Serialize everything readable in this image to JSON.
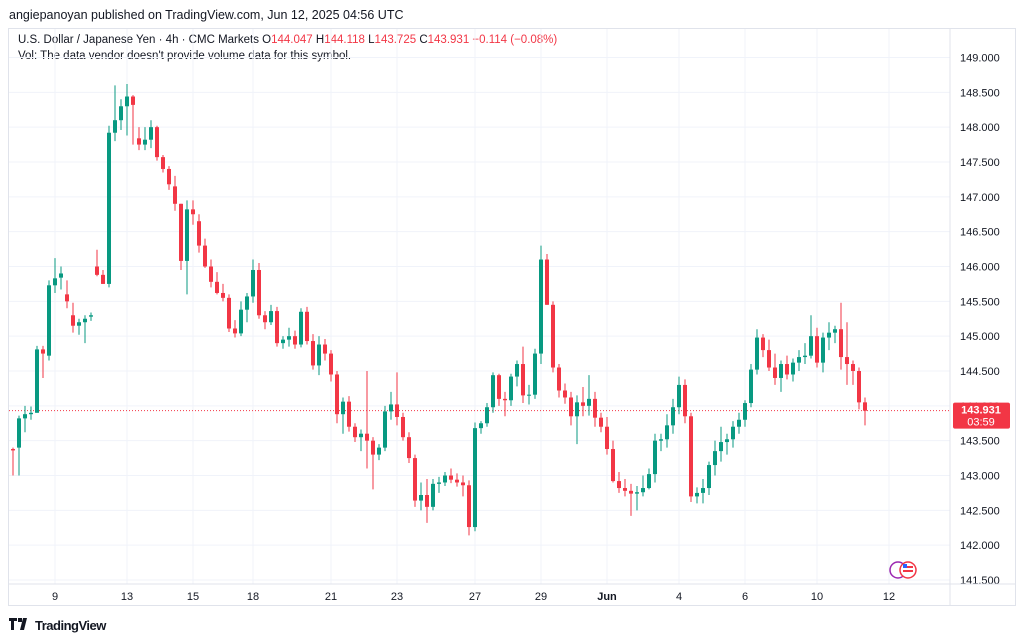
{
  "header": {
    "publisher": "angiepanoyan published on TradingView.com, Jun 12, 2025 04:56 UTC"
  },
  "legend": {
    "symbol": "U.S. Dollar / Japanese Yen · 4h · CMC Markets",
    "open_label": "O",
    "open_value": "144.047",
    "high_label": "H",
    "high_value": "144.118",
    "low_label": "L",
    "low_value": "143.725",
    "close_label": "C",
    "close_value": "143.931",
    "change": "−0.114 (−0.08%)",
    "volume_note": "Vol: The data vendor doesn't provide volume data for this symbol."
  },
  "price_tag": {
    "price": "143.931",
    "countdown": "03:59"
  },
  "footer": {
    "brand": "TradingView"
  },
  "colors": {
    "up": "#089981",
    "down": "#f23645",
    "grid": "#f0f3fa",
    "text": "#131722"
  },
  "chart_data": {
    "type": "candlestick",
    "title": "U.S. Dollar / Japanese Yen · 4h · CMC Markets",
    "ylim": [
      141.5,
      149.0
    ],
    "y_ticks": [
      "149.000",
      "148.500",
      "148.000",
      "147.500",
      "147.000",
      "146.500",
      "146.000",
      "145.500",
      "145.000",
      "144.500",
      "144.000",
      "143.500",
      "143.000",
      "142.500",
      "142.000",
      "141.500"
    ],
    "x_ticks": [
      {
        "label": "9",
        "index": 7
      },
      {
        "label": "13",
        "index": 19
      },
      {
        "label": "15",
        "index": 30
      },
      {
        "label": "18",
        "index": 40
      },
      {
        "label": "21",
        "index": 53
      },
      {
        "label": "23",
        "index": 64
      },
      {
        "label": "27",
        "index": 77
      },
      {
        "label": "29",
        "index": 88
      },
      {
        "label": "Jun",
        "index": 99
      },
      {
        "label": "4",
        "index": 111
      },
      {
        "label": "6",
        "index": 122
      },
      {
        "label": "10",
        "index": 134
      },
      {
        "label": "12",
        "index": 146
      }
    ],
    "last_price": 143.931,
    "candles": [
      [
        143.38,
        143.4,
        143.0,
        143.36
      ],
      [
        143.4,
        143.86,
        143.0,
        143.82
      ],
      [
        143.82,
        144.0,
        143.62,
        143.88
      ],
      [
        143.88,
        143.99,
        143.8,
        143.9
      ],
      [
        143.9,
        144.86,
        143.9,
        144.81
      ],
      [
        144.81,
        144.86,
        144.4,
        144.75
      ],
      [
        144.72,
        145.8,
        144.65,
        145.73
      ],
      [
        145.73,
        146.12,
        145.62,
        145.83
      ],
      [
        145.84,
        146.0,
        145.67,
        145.9
      ],
      [
        145.6,
        145.8,
        145.4,
        145.5
      ],
      [
        145.3,
        145.48,
        145.05,
        145.15
      ],
      [
        145.15,
        145.25,
        145.02,
        145.2
      ],
      [
        145.2,
        145.3,
        144.9,
        145.25
      ],
      [
        145.28,
        145.34,
        145.22,
        145.3
      ],
      [
        146.0,
        146.24,
        145.86,
        145.88
      ],
      [
        145.88,
        145.95,
        145.75,
        145.75
      ],
      [
        145.75,
        148.02,
        145.7,
        147.92
      ],
      [
        147.92,
        148.6,
        147.8,
        148.1
      ],
      [
        148.1,
        148.4,
        147.96,
        148.3
      ],
      [
        148.3,
        148.62,
        147.88,
        148.44
      ],
      [
        148.44,
        148.46,
        147.75,
        148.32
      ],
      [
        147.84,
        148.0,
        147.67,
        147.75
      ],
      [
        147.75,
        148.0,
        147.67,
        147.82
      ],
      [
        147.82,
        148.1,
        147.7,
        148.0
      ],
      [
        148.0,
        148.02,
        147.52,
        147.57
      ],
      [
        147.57,
        147.6,
        147.35,
        147.4
      ],
      [
        147.4,
        147.44,
        147.1,
        147.18
      ],
      [
        147.15,
        147.3,
        146.8,
        146.9
      ],
      [
        146.9,
        146.9,
        145.95,
        146.08
      ],
      [
        146.08,
        146.95,
        145.6,
        146.82
      ],
      [
        146.82,
        146.95,
        146.6,
        146.75
      ],
      [
        146.65,
        146.75,
        146.2,
        146.3
      ],
      [
        146.3,
        146.4,
        145.98,
        146.0
      ],
      [
        146.0,
        146.1,
        145.7,
        145.78
      ],
      [
        145.78,
        145.92,
        145.6,
        145.62
      ],
      [
        145.62,
        145.75,
        145.5,
        145.55
      ],
      [
        145.55,
        145.6,
        145.06,
        145.11
      ],
      [
        145.11,
        145.23,
        144.98,
        145.04
      ],
      [
        145.04,
        145.5,
        145.0,
        145.38
      ],
      [
        145.38,
        145.62,
        145.2,
        145.57
      ],
      [
        145.57,
        146.1,
        145.48,
        145.95
      ],
      [
        145.95,
        146.05,
        145.25,
        145.3
      ],
      [
        145.3,
        145.36,
        145.1,
        145.2
      ],
      [
        145.2,
        145.45,
        145.16,
        145.36
      ],
      [
        145.36,
        145.42,
        144.85,
        144.9
      ],
      [
        144.9,
        145.0,
        144.82,
        144.95
      ],
      [
        144.95,
        145.12,
        144.85,
        145.0
      ],
      [
        145.0,
        145.08,
        144.82,
        144.88
      ],
      [
        144.88,
        145.4,
        144.84,
        145.35
      ],
      [
        145.35,
        145.42,
        144.88,
        144.93
      ],
      [
        144.93,
        145.03,
        144.52,
        144.58
      ],
      [
        144.58,
        145.0,
        144.44,
        144.88
      ],
      [
        144.88,
        144.96,
        144.65,
        144.75
      ],
      [
        144.75,
        144.8,
        144.35,
        144.45
      ],
      [
        144.45,
        144.5,
        143.75,
        143.88
      ],
      [
        143.88,
        144.12,
        143.6,
        144.06
      ],
      [
        144.06,
        144.14,
        143.63,
        143.7
      ],
      [
        143.7,
        143.75,
        143.48,
        143.55
      ],
      [
        143.55,
        143.66,
        143.35,
        143.6
      ],
      [
        143.6,
        144.5,
        143.1,
        143.5
      ],
      [
        143.5,
        143.55,
        142.8,
        143.3
      ],
      [
        143.3,
        143.45,
        143.22,
        143.4
      ],
      [
        143.4,
        144.0,
        143.35,
        143.92
      ],
      [
        143.92,
        144.2,
        143.8,
        144.02
      ],
      [
        144.02,
        144.48,
        143.72,
        143.84
      ],
      [
        143.84,
        143.9,
        143.5,
        143.55
      ],
      [
        143.55,
        143.62,
        143.18,
        143.25
      ],
      [
        143.25,
        143.3,
        142.55,
        142.64
      ],
      [
        142.64,
        142.9,
        142.5,
        142.72
      ],
      [
        142.72,
        142.95,
        142.32,
        142.55
      ],
      [
        142.55,
        142.95,
        142.5,
        142.88
      ],
      [
        142.88,
        142.98,
        142.75,
        142.9
      ],
      [
        142.9,
        143.05,
        142.85,
        143.0
      ],
      [
        143.0,
        143.1,
        142.89,
        142.94
      ],
      [
        142.94,
        143.03,
        142.84,
        142.9
      ],
      [
        142.9,
        143.0,
        142.7,
        142.86
      ],
      [
        142.86,
        142.93,
        142.14,
        142.26
      ],
      [
        142.26,
        143.76,
        142.2,
        143.68
      ],
      [
        143.68,
        143.78,
        143.6,
        143.75
      ],
      [
        143.75,
        144.04,
        143.7,
        143.98
      ],
      [
        143.98,
        144.48,
        143.9,
        144.44
      ],
      [
        144.44,
        144.46,
        144.0,
        144.1
      ],
      [
        144.1,
        144.2,
        143.85,
        144.08
      ],
      [
        144.08,
        144.46,
        144.0,
        144.42
      ],
      [
        144.42,
        144.65,
        144.28,
        144.6
      ],
      [
        144.6,
        144.85,
        144.04,
        144.15
      ],
      [
        144.15,
        144.3,
        144.02,
        144.16
      ],
      [
        144.16,
        144.82,
        144.1,
        144.75
      ],
      [
        144.75,
        146.3,
        144.6,
        146.1
      ],
      [
        146.1,
        146.18,
        145.45,
        145.45
      ],
      [
        145.45,
        145.5,
        144.48,
        144.55
      ],
      [
        144.55,
        144.6,
        144.12,
        144.22
      ],
      [
        144.22,
        144.32,
        144.03,
        144.12
      ],
      [
        144.12,
        144.2,
        143.72,
        143.85
      ],
      [
        143.85,
        144.15,
        143.45,
        144.05
      ],
      [
        144.05,
        144.27,
        143.85,
        144.0
      ],
      [
        144.0,
        144.44,
        143.86,
        144.1
      ],
      [
        144.1,
        144.2,
        143.7,
        143.83
      ],
      [
        143.83,
        143.9,
        143.62,
        143.7
      ],
      [
        143.7,
        143.84,
        143.3,
        143.38
      ],
      [
        143.38,
        143.5,
        142.9,
        142.92
      ],
      [
        142.92,
        143.05,
        142.75,
        142.82
      ],
      [
        142.82,
        142.95,
        142.7,
        142.78
      ],
      [
        142.78,
        142.88,
        142.42,
        142.74
      ],
      [
        142.74,
        142.85,
        142.5,
        142.76
      ],
      [
        142.76,
        143.0,
        142.7,
        142.82
      ],
      [
        142.82,
        143.1,
        142.8,
        143.02
      ],
      [
        143.02,
        143.6,
        142.9,
        143.5
      ],
      [
        143.5,
        143.6,
        143.35,
        143.52
      ],
      [
        143.52,
        143.88,
        143.4,
        143.72
      ],
      [
        143.72,
        144.1,
        143.6,
        143.98
      ],
      [
        143.98,
        144.42,
        143.88,
        144.3
      ],
      [
        144.3,
        144.38,
        143.75,
        143.85
      ],
      [
        143.85,
        143.9,
        142.62,
        142.7
      ],
      [
        142.7,
        142.83,
        142.6,
        142.75
      ],
      [
        142.75,
        142.95,
        142.6,
        142.82
      ],
      [
        142.82,
        143.2,
        142.72,
        143.15
      ],
      [
        143.15,
        143.5,
        143.0,
        143.35
      ],
      [
        143.35,
        143.7,
        143.2,
        143.48
      ],
      [
        143.48,
        143.6,
        143.3,
        143.52
      ],
      [
        143.52,
        143.78,
        143.4,
        143.7
      ],
      [
        143.7,
        143.9,
        143.6,
        143.8
      ],
      [
        143.8,
        144.08,
        143.7,
        144.04
      ],
      [
        144.04,
        144.6,
        143.98,
        144.52
      ],
      [
        144.52,
        145.1,
        144.45,
        144.98
      ],
      [
        144.98,
        145.03,
        144.7,
        144.8
      ],
      [
        144.8,
        144.95,
        144.5,
        144.55
      ],
      [
        144.55,
        144.75,
        144.3,
        144.4
      ],
      [
        144.4,
        144.65,
        144.2,
        144.6
      ],
      [
        144.6,
        144.72,
        144.38,
        144.45
      ],
      [
        144.45,
        144.68,
        144.35,
        144.62
      ],
      [
        144.62,
        144.8,
        144.5,
        144.7
      ],
      [
        144.7,
        144.9,
        144.6,
        144.72
      ],
      [
        144.72,
        145.3,
        144.68,
        145.0
      ],
      [
        145.0,
        145.12,
        144.55,
        144.62
      ],
      [
        144.62,
        145.05,
        144.48,
        144.98
      ],
      [
        144.98,
        145.2,
        144.8,
        145.05
      ],
      [
        145.05,
        145.15,
        144.9,
        145.1
      ],
      [
        145.1,
        145.48,
        144.52,
        144.7
      ],
      [
        144.7,
        145.2,
        144.3,
        144.6
      ],
      [
        144.6,
        144.65,
        144.3,
        144.5
      ],
      [
        144.5,
        144.55,
        143.95,
        144.05
      ],
      [
        144.05,
        144.12,
        143.72,
        143.93
      ]
    ]
  }
}
